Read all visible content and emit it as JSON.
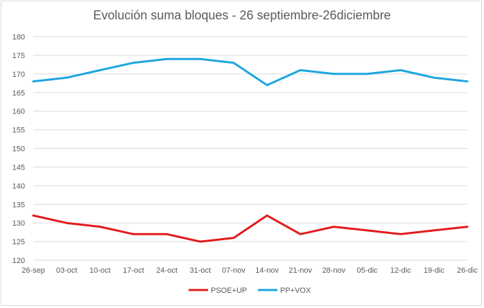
{
  "chart_data": {
    "type": "line",
    "title": "Evolución suma bloques - 26 septiembre-26diciembre",
    "categories": [
      "26-sep",
      "03-oct",
      "10-oct",
      "17-oct",
      "24-oct",
      "31-oct",
      "07-nov",
      "14-nov",
      "21-nov",
      "28-nov",
      "05-dic",
      "12-dic",
      "19-dic",
      "26-dic"
    ],
    "series": [
      {
        "name": "PSOE+UP",
        "color": "#e31a1c",
        "values": [
          132,
          130,
          129,
          127,
          127,
          125,
          126,
          132,
          127,
          129,
          128,
          127,
          128,
          129
        ]
      },
      {
        "name": "PP+VOX",
        "color": "#1ca6e0",
        "values": [
          168,
          169,
          171,
          173,
          174,
          174,
          173,
          167,
          171,
          170,
          170,
          171,
          169,
          168
        ]
      }
    ],
    "ylim": [
      120,
      180
    ],
    "yticks": [
      120,
      125,
      130,
      135,
      140,
      145,
      150,
      155,
      160,
      165,
      170,
      175,
      180
    ],
    "grid": true,
    "legend": "bottom"
  }
}
